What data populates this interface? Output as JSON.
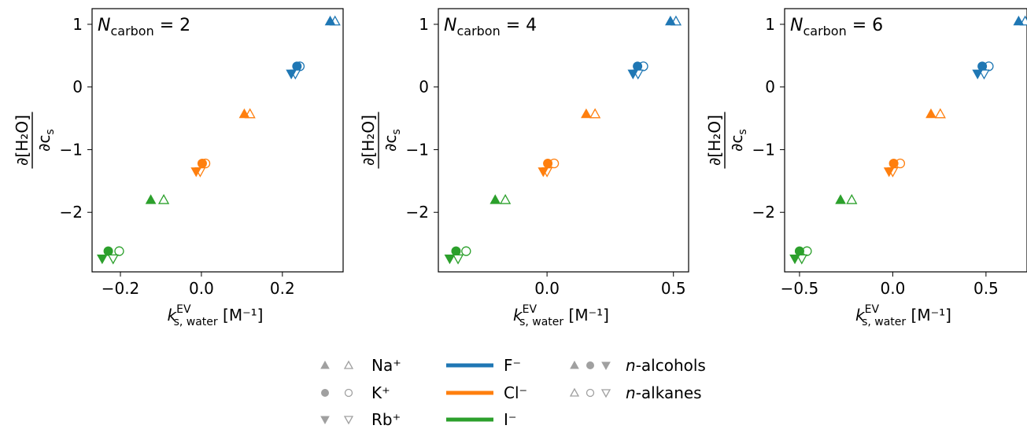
{
  "figure": {
    "colors": {
      "F": "#1f77b4",
      "Cl": "#ff7f0e",
      "I": "#2ca02c",
      "legend_marker": "#a0a0a0"
    },
    "yaxis_label": {
      "top": "∂[H₂O]",
      "bottom": "∂c",
      "bottom_sub": "s"
    },
    "xaxis_label": {
      "main": "k",
      "sub": "s, water",
      "sup": "EV",
      "unit": "[M⁻¹]"
    }
  },
  "legend": {
    "cations": [
      {
        "label": "Na⁺",
        "marker": "triangle-up"
      },
      {
        "label": "K⁺",
        "marker": "circle"
      },
      {
        "label": "Rb⁺",
        "marker": "triangle-down"
      }
    ],
    "anions": [
      {
        "label": "F⁻",
        "color": "#1f77b4"
      },
      {
        "label": "Cl⁻",
        "color": "#ff7f0e"
      },
      {
        "label": "I⁻",
        "color": "#2ca02c"
      }
    ],
    "series": [
      {
        "prefix": "n",
        "suffix": "-alcohols",
        "fill": "filled"
      },
      {
        "prefix": "n",
        "suffix": "-alkanes",
        "fill": "open"
      }
    ]
  },
  "chart_data": [
    {
      "type": "scatter",
      "annotation": {
        "var": "N",
        "sub": "carbon",
        "eq": "= 2"
      },
      "xlim": [
        -0.27,
        0.35
      ],
      "ylim": [
        -2.95,
        1.25
      ],
      "xticks": [
        -0.2,
        0.0,
        0.2
      ],
      "xtick_labels": [
        "−0.2",
        "0.0",
        "0.2"
      ],
      "yticks": [
        -2,
        -1,
        0,
        1
      ],
      "ytick_labels": [
        "−2",
        "−1",
        "0",
        "1"
      ],
      "points": [
        {
          "salt": "NaF",
          "cation": "Na",
          "anion": "F",
          "y": 1.05,
          "x_alcohol": 0.318,
          "x_alkane": 0.33
        },
        {
          "salt": "KF",
          "cation": "K",
          "anion": "F",
          "y": 0.33,
          "x_alcohol": 0.236,
          "x_alkane": 0.243
        },
        {
          "salt": "RbF",
          "cation": "Rb",
          "anion": "F",
          "y": 0.21,
          "x_alcohol": 0.222,
          "x_alkane": 0.232
        },
        {
          "salt": "NaCl",
          "cation": "Na",
          "anion": "Cl",
          "y": -0.43,
          "x_alcohol": 0.106,
          "x_alkane": 0.12
        },
        {
          "salt": "KCl",
          "cation": "K",
          "anion": "Cl",
          "y": -1.22,
          "x_alcohol": 0.002,
          "x_alkane": 0.01
        },
        {
          "salt": "RbCl",
          "cation": "Rb",
          "anion": "Cl",
          "y": -1.35,
          "x_alcohol": -0.013,
          "x_alkane": -0.003
        },
        {
          "salt": "NaI",
          "cation": "Na",
          "anion": "I",
          "y": -1.8,
          "x_alcohol": -0.125,
          "x_alkane": -0.093
        },
        {
          "salt": "KI",
          "cation": "K",
          "anion": "I",
          "y": -2.62,
          "x_alcohol": -0.23,
          "x_alkane": -0.203
        },
        {
          "salt": "RbI",
          "cation": "Rb",
          "anion": "I",
          "y": -2.74,
          "x_alcohol": -0.245,
          "x_alkane": -0.218
        }
      ]
    },
    {
      "type": "scatter",
      "annotation": {
        "var": "N",
        "sub": "carbon",
        "eq": "= 4"
      },
      "xlim": [
        -0.43,
        0.56
      ],
      "ylim": [
        -2.95,
        1.25
      ],
      "xticks": [
        0.0,
        0.5
      ],
      "xtick_labels": [
        "0.0",
        "0.5"
      ],
      "yticks": [
        -2,
        -1,
        0,
        1
      ],
      "ytick_labels": [
        "−2",
        "−1",
        "0",
        "1"
      ],
      "points": [
        {
          "salt": "NaF",
          "cation": "Na",
          "anion": "F",
          "y": 1.05,
          "x_alcohol": 0.488,
          "x_alkane": 0.51
        },
        {
          "salt": "KF",
          "cation": "K",
          "anion": "F",
          "y": 0.33,
          "x_alcohol": 0.358,
          "x_alkane": 0.381
        },
        {
          "salt": "RbF",
          "cation": "Rb",
          "anion": "F",
          "y": 0.21,
          "x_alcohol": 0.34,
          "x_alkane": 0.36
        },
        {
          "salt": "NaCl",
          "cation": "Na",
          "anion": "Cl",
          "y": -0.43,
          "x_alcohol": 0.155,
          "x_alkane": 0.19
        },
        {
          "salt": "KCl",
          "cation": "K",
          "anion": "Cl",
          "y": -1.22,
          "x_alcohol": 0.003,
          "x_alkane": 0.028
        },
        {
          "salt": "RbCl",
          "cation": "Rb",
          "anion": "Cl",
          "y": -1.35,
          "x_alcohol": -0.015,
          "x_alkane": 0.0
        },
        {
          "salt": "NaI",
          "cation": "Na",
          "anion": "I",
          "y": -1.8,
          "x_alcohol": -0.205,
          "x_alkane": -0.165
        },
        {
          "salt": "KI",
          "cation": "K",
          "anion": "I",
          "y": -2.62,
          "x_alcohol": -0.36,
          "x_alkane": -0.32
        },
        {
          "salt": "RbI",
          "cation": "Rb",
          "anion": "I",
          "y": -2.74,
          "x_alcohol": -0.385,
          "x_alkane": -0.352
        }
      ]
    },
    {
      "type": "scatter",
      "annotation": {
        "var": "N",
        "sub": "carbon",
        "eq": "= 6"
      },
      "xlim": [
        -0.58,
        0.72
      ],
      "ylim": [
        -2.95,
        1.25
      ],
      "xticks": [
        -0.5,
        0.0,
        0.5
      ],
      "xtick_labels": [
        "−0.5",
        "0.0",
        "0.5"
      ],
      "yticks": [
        -2,
        -1,
        0,
        1
      ],
      "ytick_labels": [
        "−2",
        "−1",
        "0",
        "1"
      ],
      "points": [
        {
          "salt": "NaF",
          "cation": "Na",
          "anion": "F",
          "y": 1.05,
          "x_alcohol": 0.675,
          "x_alkane": 0.71
        },
        {
          "salt": "KF",
          "cation": "K",
          "anion": "F",
          "y": 0.33,
          "x_alcohol": 0.48,
          "x_alkane": 0.515
        },
        {
          "salt": "RbF",
          "cation": "Rb",
          "anion": "F",
          "y": 0.21,
          "x_alcohol": 0.455,
          "x_alkane": 0.49
        },
        {
          "salt": "NaCl",
          "cation": "Na",
          "anion": "Cl",
          "y": -0.43,
          "x_alcohol": 0.205,
          "x_alkane": 0.255
        },
        {
          "salt": "KCl",
          "cation": "K",
          "anion": "Cl",
          "y": -1.22,
          "x_alcohol": 0.005,
          "x_alkane": 0.04
        },
        {
          "salt": "RbCl",
          "cation": "Rb",
          "anion": "Cl",
          "y": -1.35,
          "x_alcohol": -0.02,
          "x_alkane": 0.0
        },
        {
          "salt": "NaI",
          "cation": "Na",
          "anion": "I",
          "y": -1.8,
          "x_alcohol": -0.28,
          "x_alkane": -0.22
        },
        {
          "salt": "KI",
          "cation": "K",
          "anion": "I",
          "y": -2.62,
          "x_alcohol": -0.5,
          "x_alkane": -0.46
        },
        {
          "salt": "RbI",
          "cation": "Rb",
          "anion": "I",
          "y": -2.74,
          "x_alcohol": -0.525,
          "x_alkane": -0.488
        }
      ]
    }
  ]
}
